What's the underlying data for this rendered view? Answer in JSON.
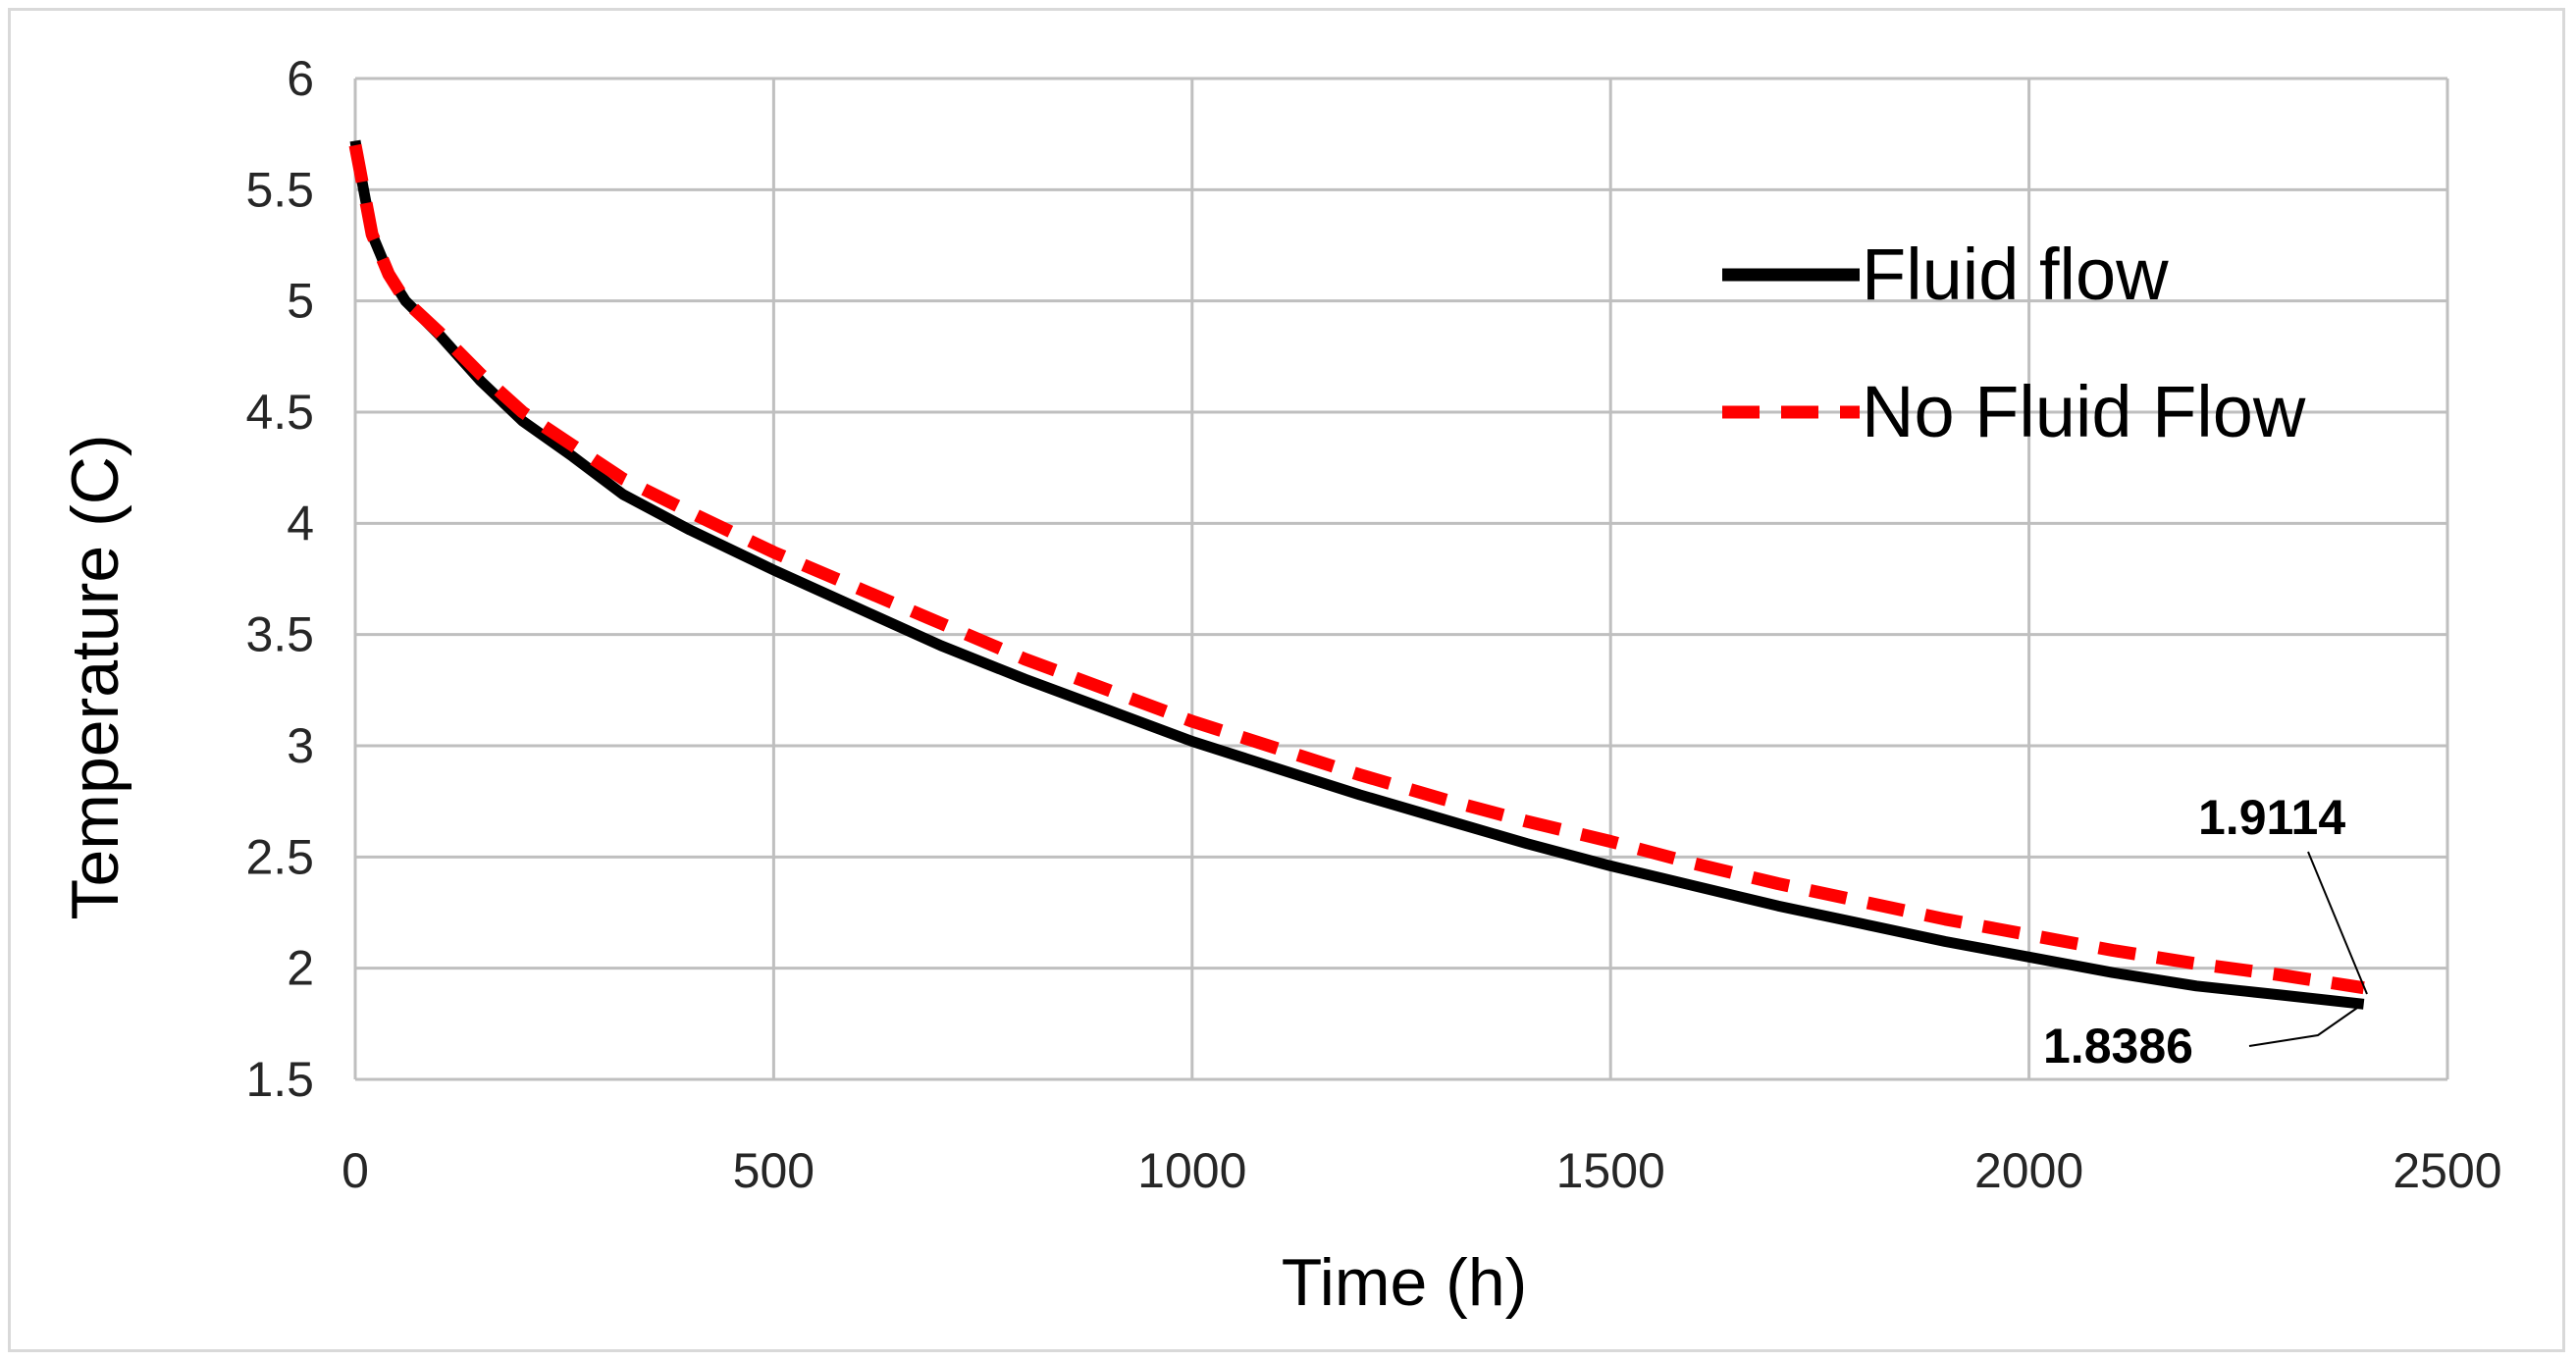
{
  "chart_data": {
    "type": "line",
    "xlabel": "Time (h)",
    "ylabel": "Temperature (C)",
    "xlim": [
      0,
      2500
    ],
    "ylim": [
      1.5,
      6
    ],
    "x_ticks": [
      "0",
      "500",
      "1000",
      "1500",
      "2000",
      "2500"
    ],
    "y_ticks": [
      "1.5",
      "2",
      "2.5",
      "3",
      "3.5",
      "4",
      "4.5",
      "5",
      "5.5",
      "6"
    ],
    "grid": true,
    "legend_position": "top-right",
    "series": [
      {
        "name": "Fluid flow",
        "color": "#000000",
        "style": "solid",
        "x": [
          0,
          5,
          10,
          20,
          40,
          60,
          100,
          150,
          200,
          260,
          320,
          400,
          500,
          600,
          700,
          800,
          900,
          1000,
          1100,
          1200,
          1300,
          1400,
          1500,
          1600,
          1700,
          1800,
          1900,
          2000,
          2100,
          2200,
          2300,
          2400
        ],
        "y": [
          5.72,
          5.6,
          5.5,
          5.3,
          5.12,
          5.0,
          4.85,
          4.64,
          4.46,
          4.3,
          4.13,
          3.97,
          3.79,
          3.62,
          3.45,
          3.3,
          3.16,
          3.02,
          2.9,
          2.78,
          2.67,
          2.56,
          2.46,
          2.37,
          2.28,
          2.2,
          2.12,
          2.05,
          1.98,
          1.92,
          1.88,
          1.8386
        ]
      },
      {
        "name": "No Fluid Flow",
        "color": "#ff0000",
        "style": "dashed",
        "x": [
          0,
          5,
          10,
          20,
          40,
          60,
          100,
          150,
          200,
          260,
          320,
          400,
          500,
          600,
          700,
          800,
          900,
          1000,
          1100,
          1200,
          1300,
          1400,
          1500,
          1600,
          1700,
          1800,
          1900,
          2000,
          2100,
          2200,
          2300,
          2400
        ],
        "y": [
          5.7,
          5.6,
          5.5,
          5.3,
          5.12,
          5.0,
          4.86,
          4.67,
          4.5,
          4.35,
          4.2,
          4.05,
          3.87,
          3.71,
          3.55,
          3.39,
          3.25,
          3.11,
          2.99,
          2.87,
          2.76,
          2.66,
          2.57,
          2.47,
          2.38,
          2.3,
          2.22,
          2.15,
          2.08,
          2.02,
          1.97,
          1.9114
        ]
      }
    ],
    "annotations": [
      {
        "text": "1.9114",
        "x": 2400,
        "y": 1.9114
      },
      {
        "text": "1.8386",
        "x": 2400,
        "y": 1.8386
      }
    ]
  }
}
